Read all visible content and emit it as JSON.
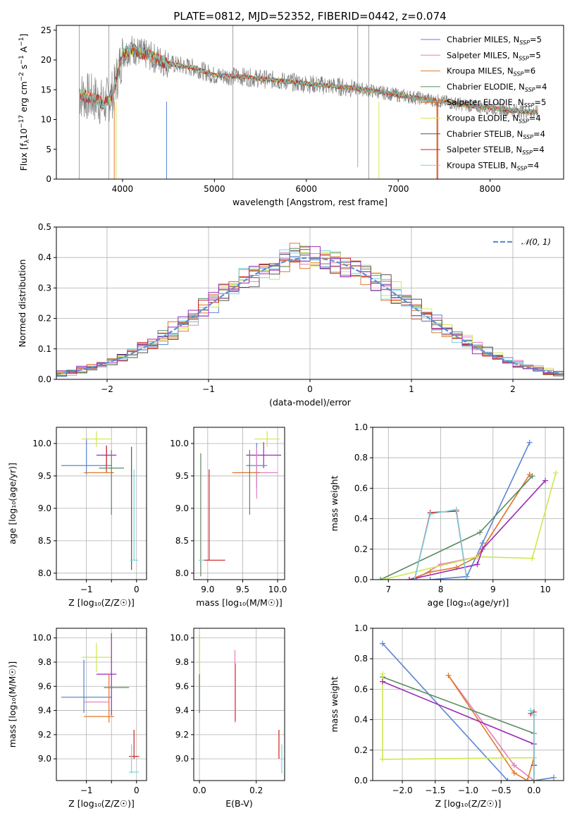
{
  "colors": {
    "chabrier_miles": "#5b86d4",
    "salpeter_miles": "#e47fc0",
    "kroupa_miles": "#e07a2a",
    "chabrier_elodie": "#5a8a60",
    "salpeter_elodie": "#e2732c",
    "kroupa_elodie": "#cde84f",
    "chabrier_stelib": "#555555",
    "salpeter_stelib": "#cc2222",
    "kroupa_stelib": "#77d4dd",
    "purple": "#9b2ab8",
    "data": "#7f7f7f"
  },
  "chart_data": [
    {
      "id": "spectrum",
      "type": "line",
      "title": "PLATE=0812, MJD=52352, FIBERID=0442, z=0.074",
      "xlabel": "wavelength [Angstrom, rest frame]",
      "ylabel_parts": [
        "Flux [f",
        "λ",
        "10",
        "−17",
        " erg cm",
        "−2",
        " s",
        "−1",
        " A",
        "−1",
        "]"
      ],
      "xlim": [
        3280,
        8800
      ],
      "ylim": [
        0,
        25.8
      ],
      "xticks": [
        4000,
        5000,
        6000,
        7000,
        8000
      ],
      "yticks": [
        0,
        5,
        10,
        15,
        20,
        25
      ],
      "continuum": [
        [
          3530,
          14.2
        ],
        [
          3700,
          13.5
        ],
        [
          3800,
          12.6
        ],
        [
          3900,
          14.5
        ],
        [
          4000,
          21
        ],
        [
          4100,
          21.8
        ],
        [
          4300,
          20.6
        ],
        [
          4500,
          19.4
        ],
        [
          4800,
          18.6
        ],
        [
          5000,
          17.4
        ],
        [
          5300,
          17.2
        ],
        [
          5600,
          16.7
        ],
        [
          6000,
          16.0
        ],
        [
          6300,
          15.6
        ],
        [
          6600,
          15.1
        ],
        [
          7000,
          14.1
        ],
        [
          7400,
          13.2
        ],
        [
          7800,
          12.3
        ],
        [
          8200,
          11.6
        ],
        [
          8520,
          11.2
        ]
      ],
      "legend": [
        {
          "label": "Chabrier MILES, N",
          "sub": "SSP",
          "n": "=5",
          "color_key": "chabrier_miles"
        },
        {
          "label": "Salpeter MILES, N",
          "sub": "SSP",
          "n": "=5",
          "color_key": "salpeter_miles"
        },
        {
          "label": "Kroupa MILES, N",
          "sub": "SSP",
          "n": "=6",
          "color_key": "kroupa_miles"
        },
        {
          "label": "Chabrier ELODIE, N",
          "sub": "SSP",
          "n": "=4",
          "color_key": "chabrier_elodie"
        },
        {
          "label": "Salpeter ELODIE, N",
          "sub": "SSP",
          "n": "=5",
          "color_key": "salpeter_elodie"
        },
        {
          "label": "Kroupa ELODIE, N",
          "sub": "SSP",
          "n": "=4",
          "color_key": "kroupa_elodie"
        },
        {
          "label": "Chabrier STELIB, N",
          "sub": "SSP",
          "n": "=4",
          "color_key": "chabrier_stelib"
        },
        {
          "label": "Salpeter STELIB, N",
          "sub": "SSP",
          "n": "=4",
          "color_key": "salpeter_stelib"
        },
        {
          "label": "Kroupa STELIB, N",
          "sub": "SSP",
          "n": "=4",
          "color_key": "kroupa_stelib"
        }
      ]
    },
    {
      "id": "residuals",
      "type": "histogram",
      "xlabel": "(data-model)/error",
      "ylabel": "Normed distribution",
      "xlim": [
        -2.5,
        2.5
      ],
      "ylim": [
        0,
        0.5
      ],
      "xticks": [
        -2,
        -1,
        0,
        1,
        2
      ],
      "xtick_labels": [
        "−2",
        "−1",
        "0",
        "1",
        "2"
      ],
      "yticks": [
        0.0,
        0.1,
        0.2,
        0.3,
        0.4,
        0.5
      ],
      "ytick_labels": [
        "0.0",
        "0.1",
        "0.2",
        "0.3",
        "0.4",
        "0.5"
      ],
      "bin_width": 0.1,
      "legend_label": "𝒩(0, 1)"
    },
    {
      "id": "age_vs_Z",
      "type": "errorbar",
      "xlabel": "Z [log₁₀(Z/Z☉)]",
      "ylabel": "age  [log₁₀(age/yr)]",
      "xlim": [
        -1.6,
        0.2
      ],
      "ylim": [
        7.9,
        10.25
      ],
      "xticks": [
        -1,
        -0.5,
        0
      ],
      "xtick_labels": [
        "−1",
        "",
        "0"
      ],
      "yticks": [
        8.0,
        8.5,
        9.0,
        9.5,
        10.0
      ],
      "ytick_labels": [
        "8.0",
        "8.5",
        "9.0",
        "9.5",
        "10.0"
      ],
      "points": [
        {
          "c": "chabrier_miles",
          "x": -1.0,
          "xe": 0.5,
          "y": 9.66,
          "ye": 0.0
        },
        {
          "c": "chabrier_miles",
          "x": -1.0,
          "xe": 0.0,
          "y": 9.8,
          "ye": 0.28
        },
        {
          "c": "kroupa_elodie",
          "x": -0.8,
          "xe": 0.3,
          "y": 10.07,
          "ye": 0.12
        },
        {
          "c": "purple",
          "x": -0.6,
          "xe": 0.2,
          "y": 9.82,
          "ye": 0.15
        },
        {
          "c": "kroupa_miles",
          "x": -0.75,
          "xe": 0.3,
          "y": 9.55,
          "ye": 0.0
        },
        {
          "c": "salpeter_stelib",
          "x": -0.6,
          "xe": 0.0,
          "y": 9.76,
          "ye": 0.2
        },
        {
          "c": "chabrier_elodie",
          "x": -0.5,
          "xe": 0.25,
          "y": 9.62,
          "ye": 0.0
        },
        {
          "c": "chabrier_elodie",
          "x": -0.5,
          "xe": 0.0,
          "y": 9.4,
          "ye": 0.5
        },
        {
          "c": "chabrier_stelib",
          "x": -0.1,
          "xe": 0.0,
          "y": 9.0,
          "ye": 0.95
        },
        {
          "c": "kroupa_stelib",
          "x": -0.05,
          "xe": 0.08,
          "y": 8.2,
          "ye": 0.0
        },
        {
          "c": "kroupa_stelib",
          "x": -0.05,
          "xe": 0.0,
          "y": 8.9,
          "ye": 0.7
        }
      ]
    },
    {
      "id": "age_vs_mass",
      "type": "errorbar",
      "xlabel": "mass [log₁₀(M/M☉)]",
      "ylabel": "",
      "xlim": [
        8.8,
        10.1
      ],
      "ylim": [
        7.9,
        10.25
      ],
      "xticks": [
        9.0,
        9.5,
        10.0
      ],
      "xtick_labels": [
        "9.0",
        "9.5",
        "10.0"
      ],
      "yticks": [
        8.0,
        8.5,
        9.0,
        9.5,
        10.0
      ],
      "ytick_labels": [
        "8.0",
        "8.5",
        "9.0",
        "9.5",
        "10.0"
      ],
      "points": [
        {
          "c": "chabrier_elodie",
          "x": 8.9,
          "xe": 0.0,
          "y": 8.9,
          "ye": 0.95
        },
        {
          "c": "kroupa_stelib",
          "x": 8.95,
          "xe": 0.08,
          "y": 8.2,
          "ye": 0.0
        },
        {
          "c": "salpeter_stelib",
          "x": 9.1,
          "xe": 0.15,
          "y": 8.2,
          "ye": 0.0
        },
        {
          "c": "salpeter_stelib",
          "x": 9.02,
          "xe": 0.0,
          "y": 8.9,
          "ye": 0.7
        },
        {
          "c": "kroupa_elodie",
          "x": 9.85,
          "xe": 0.18,
          "y": 10.07,
          "ye": 0.12
        },
        {
          "c": "purple",
          "x": 9.8,
          "xe": 0.25,
          "y": 9.82,
          "ye": 0.2
        },
        {
          "c": "chabrier_miles",
          "x": 9.7,
          "xe": 0.15,
          "y": 9.66,
          "ye": 0.35
        },
        {
          "c": "salpeter_miles",
          "x": 9.7,
          "xe": 0.3,
          "y": 9.55,
          "ye": 0.4
        },
        {
          "c": "kroupa_miles",
          "x": 9.55,
          "xe": 0.2,
          "y": 9.55,
          "ye": 0.0
        },
        {
          "c": "chabrier_elodie",
          "x": 9.6,
          "xe": 0.0,
          "y": 9.4,
          "ye": 0.5
        }
      ]
    },
    {
      "id": "weight_vs_age",
      "type": "line",
      "xlabel": "age  [log₁₀(age/yr)]",
      "ylabel": "mass weight",
      "xlim": [
        6.7,
        10.35
      ],
      "ylim": [
        0,
        1.0
      ],
      "xticks": [
        7,
        8,
        9,
        10
      ],
      "xtick_labels": [
        "7",
        "8",
        "9",
        "10"
      ],
      "yticks": [
        0,
        0.2,
        0.4,
        0.6,
        0.8,
        1.0
      ],
      "ytick_labels": [
        "0.0",
        "0.2",
        "0.4",
        "0.6",
        "0.8",
        "1.0"
      ],
      "series": [
        {
          "c": "chabrier_miles",
          "x": [
            7.8,
            8.5,
            8.8,
            9.7
          ],
          "y": [
            0.0,
            0.02,
            0.24,
            0.9
          ]
        },
        {
          "c": "salpeter_miles",
          "x": [
            7.5,
            8.0,
            8.7,
            9.7
          ],
          "y": [
            0.0,
            0.1,
            0.15,
            0.69
          ]
        },
        {
          "c": "kroupa_miles",
          "x": [
            7.4,
            7.8,
            8.3,
            8.7,
            9.7
          ],
          "y": [
            0.0,
            0.05,
            0.08,
            0.15,
            0.69
          ]
        },
        {
          "c": "chabrier_elodie",
          "x": [
            6.85,
            8.75,
            9.75
          ],
          "y": [
            0.0,
            0.31,
            0.68
          ]
        },
        {
          "c": "kroupa_elodie",
          "x": [
            6.9,
            8.7,
            9.75,
            10.2
          ],
          "y": [
            0.0,
            0.15,
            0.14,
            0.7
          ]
        },
        {
          "c": "purple",
          "x": [
            7.4,
            8.7,
            8.8,
            10.0
          ],
          "y": [
            0.0,
            0.1,
            0.2,
            0.65
          ]
        },
        {
          "c": "salpeter_stelib",
          "x": [
            7.5,
            7.8,
            8.3,
            8.5
          ],
          "y": [
            0.0,
            0.44,
            0.45,
            0.0
          ]
        },
        {
          "c": "kroupa_stelib",
          "x": [
            7.5,
            7.8,
            8.3,
            8.5
          ],
          "y": [
            0.0,
            0.43,
            0.46,
            0.0
          ]
        }
      ]
    },
    {
      "id": "mass_vs_Z",
      "type": "errorbar",
      "xlabel": "Z [log₁₀(Z/Z☉)]",
      "ylabel": "mass [log₁₀(M/M☉)]",
      "xlim": [
        -1.6,
        0.2
      ],
      "ylim": [
        8.82,
        10.08
      ],
      "xticks": [
        -1,
        -0.5,
        0
      ],
      "xtick_labels": [
        "−1",
        "",
        "0"
      ],
      "yticks": [
        9.0,
        9.2,
        9.4,
        9.6,
        9.8,
        10.0
      ],
      "ytick_labels": [
        "9.0",
        "9.2",
        "9.4",
        "9.6",
        "9.8",
        "10.0"
      ],
      "points": [
        {
          "c": "chabrier_miles",
          "x": -1.0,
          "xe": 0.5,
          "y": 9.51,
          "ye": 0.0
        },
        {
          "c": "chabrier_miles",
          "x": -1.05,
          "xe": 0.0,
          "y": 9.6,
          "ye": 0.22
        },
        {
          "c": "kroupa_elodie",
          "x": -0.8,
          "xe": 0.3,
          "y": 9.84,
          "ye": 0.12
        },
        {
          "c": "salpeter_miles",
          "x": -0.8,
          "xe": 0.25,
          "y": 9.47,
          "ye": 0.0
        },
        {
          "c": "kroupa_miles",
          "x": -0.75,
          "xe": 0.3,
          "y": 9.35,
          "ye": 0.0
        },
        {
          "c": "purple",
          "x": -0.6,
          "xe": 0.2,
          "y": 9.7,
          "ye": 0.0
        },
        {
          "c": "purple",
          "x": -0.5,
          "xe": 0.0,
          "y": 9.7,
          "ye": 0.34
        },
        {
          "c": "chabrier_elodie",
          "x": -0.4,
          "xe": 0.25,
          "y": 9.59,
          "ye": 0.0
        },
        {
          "c": "salpeter_elodie",
          "x": -0.55,
          "xe": 0.0,
          "y": 9.5,
          "ye": 0.2
        },
        {
          "c": "salpeter_stelib",
          "x": -0.05,
          "xe": 0.1,
          "y": 9.02,
          "ye": 0.0
        },
        {
          "c": "salpeter_stelib",
          "x": -0.05,
          "xe": 0.0,
          "y": 9.12,
          "ye": 0.12
        },
        {
          "c": "kroupa_stelib",
          "x": -0.05,
          "xe": 0.1,
          "y": 8.89,
          "ye": 0.0
        },
        {
          "c": "kroupa_stelib",
          "x": -0.1,
          "xe": 0.0,
          "y": 9.0,
          "ye": 0.12
        }
      ]
    },
    {
      "id": "mass_vs_ebv",
      "type": "errorbar",
      "xlabel": "E(B-V)",
      "ylabel": "",
      "xlim": [
        -0.02,
        0.3
      ],
      "ylim": [
        8.82,
        10.08
      ],
      "xticks": [
        0.0,
        0.2
      ],
      "xtick_labels": [
        "0.0",
        "0.2"
      ],
      "yticks": [
        9.0,
        9.2,
        9.4,
        9.6,
        9.8,
        10.0
      ],
      "ytick_labels": [
        "9.0",
        "9.2",
        "9.4",
        "9.6",
        "9.8",
        "10.0"
      ],
      "points": [
        {
          "c": "purple",
          "x": 0.0,
          "xe": 0.0,
          "y": 9.7,
          "ye": 0.32
        },
        {
          "c": "kroupa_elodie",
          "x": 0.0,
          "xe": 0.0,
          "y": 9.8,
          "ye": 0.22
        },
        {
          "c": "chabrier_elodie",
          "x": 0.0,
          "xe": 0.0,
          "y": 9.55,
          "ye": 0.15
        },
        {
          "c": "salpeter_miles",
          "x": 0.125,
          "xe": 0.0,
          "y": 9.6,
          "ye": 0.3
        },
        {
          "c": "kroupa_miles",
          "x": 0.127,
          "xe": 0.0,
          "y": 9.55,
          "ye": 0.24
        },
        {
          "c": "salpeter_stelib",
          "x": 0.28,
          "xe": 0.0,
          "y": 9.12,
          "ye": 0.12
        },
        {
          "c": "kroupa_stelib",
          "x": 0.29,
          "xe": 0.0,
          "y": 9.0,
          "ye": 0.12
        }
      ]
    },
    {
      "id": "weight_vs_Z",
      "type": "line",
      "xlabel": "Z [log₁₀(Z/Z☉)]",
      "ylabel": "mass weight",
      "xlim": [
        -2.45,
        0.45
      ],
      "ylim": [
        0,
        1.0
      ],
      "xticks": [
        -2.0,
        -1.5,
        -1.0,
        -0.5,
        0.0
      ],
      "xtick_labels": [
        "−2.0",
        "−1.5",
        "−1.0",
        "−0.5",
        "0.0"
      ],
      "yticks": [
        0,
        0.2,
        0.4,
        0.6,
        0.8,
        1.0
      ],
      "ytick_labels": [
        "0.0",
        "0.2",
        "0.4",
        "0.6",
        "0.8",
        "1.0"
      ],
      "series": [
        {
          "c": "chabrier_miles",
          "x": [
            -2.3,
            -0.4,
            0.0,
            0.3
          ],
          "y": [
            0.9,
            0.0,
            0.0,
            0.02
          ]
        },
        {
          "c": "salpeter_miles",
          "x": [
            -1.3,
            -0.3,
            0.0
          ],
          "y": [
            0.69,
            0.1,
            0.0
          ]
        },
        {
          "c": "kroupa_miles",
          "x": [
            -1.3,
            -0.3,
            -0.1,
            0.0
          ],
          "y": [
            0.69,
            0.05,
            0.0,
            0.15
          ]
        },
        {
          "c": "chabrier_elodie",
          "x": [
            -2.3,
            0.0
          ],
          "y": [
            0.68,
            0.31
          ]
        },
        {
          "c": "kroupa_elodie",
          "x": [
            -2.3,
            -2.3,
            0.0,
            0.0
          ],
          "y": [
            0.7,
            0.14,
            0.15,
            0.0
          ]
        },
        {
          "c": "purple",
          "x": [
            -2.3,
            0.0,
            0.0
          ],
          "y": [
            0.65,
            0.24,
            0.1
          ]
        },
        {
          "c": "salpeter_stelib",
          "x": [
            -0.05,
            0.0,
            0.0,
            0.0
          ],
          "y": [
            0.44,
            0.45,
            0.1,
            0.0
          ]
        },
        {
          "c": "kroupa_stelib",
          "x": [
            -0.05,
            0.0,
            0.0
          ],
          "y": [
            0.46,
            0.43,
            0.0
          ]
        }
      ]
    }
  ]
}
